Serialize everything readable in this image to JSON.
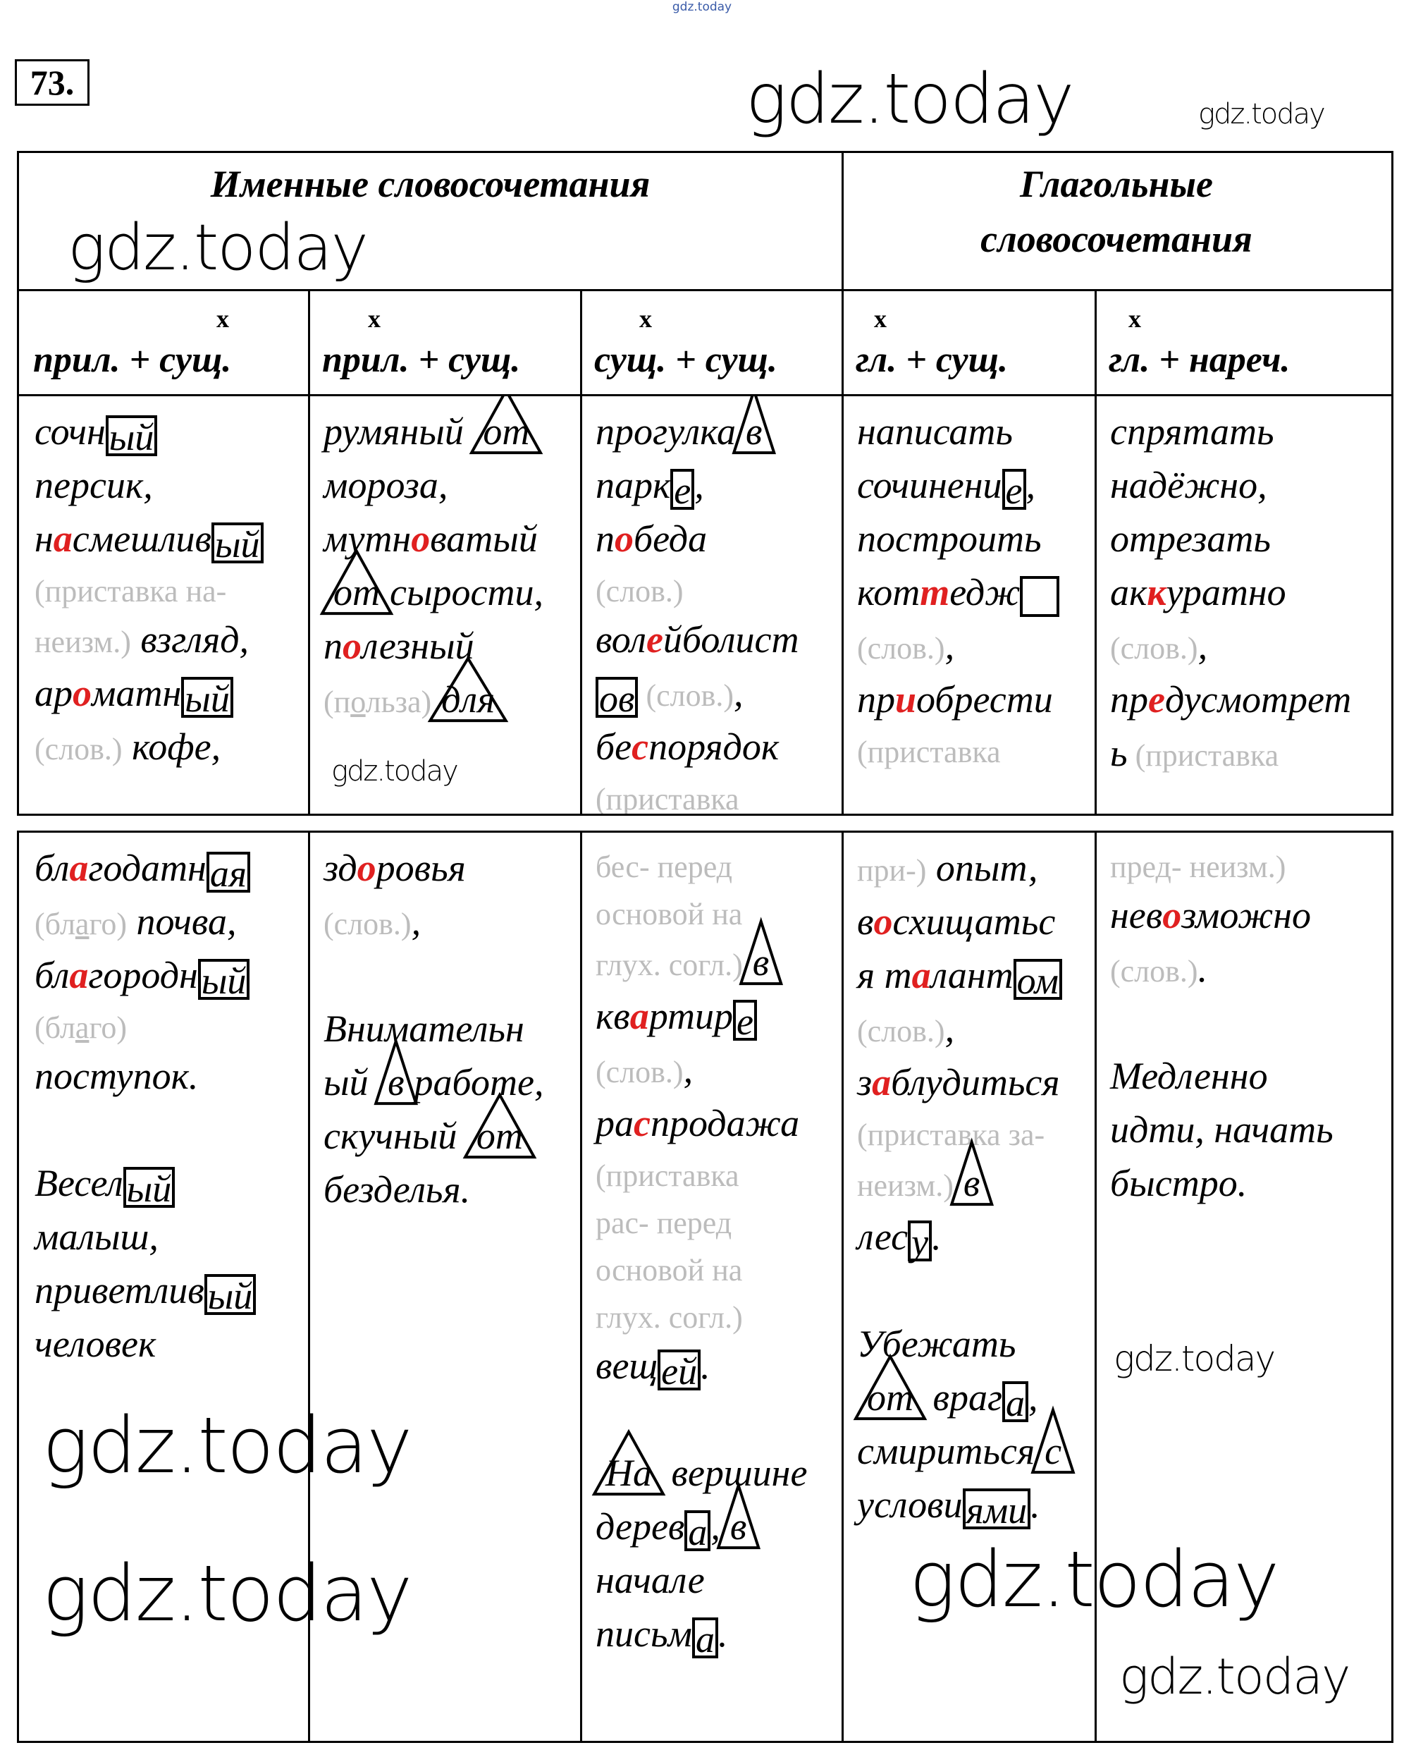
{
  "watermark_top": "gdz.today",
  "watermark": "gdz.today",
  "exercise_number": "73.",
  "header": {
    "nominal": "Именные словосочетания",
    "verbal_line1": "Глагольные",
    "verbal_line2": "словосочетания"
  },
  "subheaders": [
    {
      "mark": "x",
      "label": "прил. + сущ."
    },
    {
      "mark": "x",
      "label": "прил. + сущ."
    },
    {
      "mark": "x",
      "label": "сущ. + сущ."
    },
    {
      "mark": "x",
      "label": "гл. + сущ."
    },
    {
      "mark": "x",
      "label": "гл. + нареч."
    }
  ],
  "colors": {
    "accent": "#e02020",
    "note": "#bcbcbc"
  },
  "table1": [
    [
      [
        {
          "s": "n",
          "t": "сочн"
        },
        {
          "s": "box",
          "t": "ый"
        }
      ],
      [
        {
          "s": "n",
          "t": "персик,"
        }
      ],
      [
        {
          "s": "n",
          "t": "н"
        },
        {
          "s": "r",
          "t": "а"
        },
        {
          "s": "n",
          "t": "смешлив"
        },
        {
          "s": "box",
          "t": "ый"
        }
      ],
      [
        {
          "s": "g",
          "t": "(приставка на-"
        }
      ],
      [
        {
          "s": "g",
          "t": "неизм.)"
        },
        {
          "s": "n",
          "t": " взгляд,"
        }
      ],
      [
        {
          "s": "n",
          "t": "ар"
        },
        {
          "s": "r",
          "t": "о"
        },
        {
          "s": "n",
          "t": "матн"
        },
        {
          "s": "box",
          "t": "ый"
        }
      ],
      [
        {
          "s": "g",
          "t": "(слов.)"
        },
        {
          "s": "n",
          "t": " кофе,"
        }
      ]
    ],
    [
      [
        {
          "s": "n",
          "t": "румяный "
        },
        {
          "s": "tri",
          "t": "от"
        }
      ],
      [
        {
          "s": "n",
          "t": "мороза,"
        }
      ],
      [
        {
          "s": "n",
          "t": "мутн"
        },
        {
          "s": "r",
          "t": "о"
        },
        {
          "s": "n",
          "t": "ватый"
        }
      ],
      [
        {
          "s": "tri",
          "t": "от"
        },
        {
          "s": "n",
          "t": "сырости,"
        }
      ],
      [
        {
          "s": "n",
          "t": "п"
        },
        {
          "s": "r",
          "t": "о"
        },
        {
          "s": "n",
          "t": "лезный"
        }
      ],
      [
        {
          "s": "g",
          "t": "(п"
        },
        {
          "s": "gu",
          "t": "о"
        },
        {
          "s": "g",
          "t": "льза)"
        },
        {
          "s": "tri",
          "t": "для"
        }
      ]
    ],
    [
      [
        {
          "s": "n",
          "t": "прогулка"
        },
        {
          "s": "tri",
          "t": "в"
        }
      ],
      [
        {
          "s": "n",
          "t": "парк"
        },
        {
          "s": "box",
          "t": "е"
        },
        {
          "s": "n",
          "t": ","
        }
      ],
      [
        {
          "s": "n",
          "t": "п"
        },
        {
          "s": "r",
          "t": "о"
        },
        {
          "s": "n",
          "t": "беда"
        }
      ],
      [
        {
          "s": "g",
          "t": "(слов.)"
        }
      ],
      [
        {
          "s": "n",
          "t": "вол"
        },
        {
          "s": "r",
          "t": "е"
        },
        {
          "s": "n",
          "t": "йболист"
        }
      ],
      [
        {
          "s": "box",
          "t": "ов"
        },
        {
          "s": "g",
          "t": " (слов.)"
        },
        {
          "s": "n",
          "t": ","
        }
      ],
      [
        {
          "s": "n",
          "t": "бе"
        },
        {
          "s": "r",
          "t": "с"
        },
        {
          "s": "n",
          "t": "порядок"
        }
      ],
      [
        {
          "s": "g",
          "t": "(приставка"
        }
      ]
    ],
    [
      [
        {
          "s": "n",
          "t": "написать"
        }
      ],
      [
        {
          "s": "n",
          "t": "сочинени"
        },
        {
          "s": "box",
          "t": "е"
        },
        {
          "s": "n",
          "t": ","
        }
      ],
      [
        {
          "s": "n",
          "t": "построить"
        }
      ],
      [
        {
          "s": "n",
          "t": "кот"
        },
        {
          "s": "r",
          "t": "т"
        },
        {
          "s": "n",
          "t": "едж"
        },
        {
          "s": "box",
          "t": "  "
        }
      ],
      [
        {
          "s": "g",
          "t": "(слов.)"
        },
        {
          "s": "n",
          "t": ","
        }
      ],
      [
        {
          "s": "n",
          "t": "пр"
        },
        {
          "s": "r",
          "t": "и"
        },
        {
          "s": "n",
          "t": "обрести"
        }
      ],
      [
        {
          "s": "g",
          "t": "(приставка"
        }
      ]
    ],
    [
      [
        {
          "s": "n",
          "t": "спрятать"
        }
      ],
      [
        {
          "s": "n",
          "t": "надёжно,"
        }
      ],
      [
        {
          "s": "n",
          "t": "отрезать"
        }
      ],
      [
        {
          "s": "n",
          "t": "ак"
        },
        {
          "s": "r",
          "t": "к"
        },
        {
          "s": "n",
          "t": "уратно"
        }
      ],
      [
        {
          "s": "g",
          "t": "(слов.)"
        },
        {
          "s": "n",
          "t": ","
        }
      ],
      [
        {
          "s": "n",
          "t": "пр"
        },
        {
          "s": "r",
          "t": "е"
        },
        {
          "s": "n",
          "t": "дусмотрет"
        }
      ],
      [
        {
          "s": "n",
          "t": "ь"
        },
        {
          "s": "g",
          "t": " (приставка"
        }
      ]
    ]
  ],
  "table2": [
    [
      [
        {
          "s": "n",
          "t": "бл"
        },
        {
          "s": "r",
          "t": "а"
        },
        {
          "s": "n",
          "t": "годатн"
        },
        {
          "s": "box",
          "t": "ая"
        }
      ],
      [
        {
          "s": "g",
          "t": "(бл"
        },
        {
          "s": "gu",
          "t": "а"
        },
        {
          "s": "g",
          "t": "го)"
        },
        {
          "s": "n",
          "t": " почва,"
        }
      ],
      [
        {
          "s": "n",
          "t": "бл"
        },
        {
          "s": "r",
          "t": "а"
        },
        {
          "s": "n",
          "t": "городн"
        },
        {
          "s": "box",
          "t": "ый"
        }
      ],
      [
        {
          "s": "g",
          "t": "(бл"
        },
        {
          "s": "gu",
          "t": "а"
        },
        {
          "s": "g",
          "t": "го)"
        }
      ],
      [
        {
          "s": "n",
          "t": "поступок."
        }
      ],
      [],
      [
        {
          "s": "n",
          "t": "Весел"
        },
        {
          "s": "box",
          "t": "ый"
        }
      ],
      [
        {
          "s": "n",
          "t": "малыш,"
        }
      ],
      [
        {
          "s": "n",
          "t": "приветлив"
        },
        {
          "s": "box",
          "t": "ый"
        }
      ],
      [
        {
          "s": "n",
          "t": "человек"
        }
      ]
    ],
    [
      [
        {
          "s": "n",
          "t": "зд"
        },
        {
          "s": "r",
          "t": "о"
        },
        {
          "s": "n",
          "t": "ровья"
        }
      ],
      [
        {
          "s": "g",
          "t": "(слов.)"
        },
        {
          "s": "n",
          "t": ","
        }
      ],
      [],
      [
        {
          "s": "n",
          "t": "Внимательн"
        }
      ],
      [
        {
          "s": "n",
          "t": "ый "
        },
        {
          "s": "tri",
          "t": "в"
        },
        {
          "s": "n",
          "t": "работе,"
        }
      ],
      [
        {
          "s": "n",
          "t": "скучный "
        },
        {
          "s": "tri",
          "t": "от"
        }
      ],
      [
        {
          "s": "n",
          "t": "безделья."
        }
      ]
    ],
    [
      [
        {
          "s": "g",
          "t": "бес- перед"
        }
      ],
      [
        {
          "s": "g",
          "t": "основой на"
        }
      ],
      [
        {
          "s": "g",
          "t": "глух. согл.)"
        },
        {
          "s": "tri",
          "t": "в"
        }
      ],
      [
        {
          "s": "n",
          "t": "кв"
        },
        {
          "s": "r",
          "t": "а"
        },
        {
          "s": "n",
          "t": "ртир"
        },
        {
          "s": "box",
          "t": "е"
        }
      ],
      [
        {
          "s": "g",
          "t": "(слов.)"
        },
        {
          "s": "n",
          "t": ","
        }
      ],
      [
        {
          "s": "n",
          "t": "ра"
        },
        {
          "s": "r",
          "t": "с"
        },
        {
          "s": "n",
          "t": "продажа"
        }
      ],
      [
        {
          "s": "g",
          "t": "(приставка"
        }
      ],
      [
        {
          "s": "g",
          "t": "рас- перед"
        }
      ],
      [
        {
          "s": "g",
          "t": "основой на"
        }
      ],
      [
        {
          "s": "g",
          "t": "глух. согл.)"
        }
      ],
      [
        {
          "s": "n",
          "t": "вещ"
        },
        {
          "s": "box",
          "t": "ей"
        },
        {
          "s": "n",
          "t": "."
        }
      ],
      [],
      [
        {
          "s": "tri",
          "t": "На"
        },
        {
          "s": "n",
          "t": " вершине"
        }
      ],
      [
        {
          "s": "n",
          "t": "дерев"
        },
        {
          "s": "box",
          "t": "а"
        },
        {
          "s": "n",
          "t": ","
        },
        {
          "s": "tri",
          "t": "в"
        }
      ],
      [
        {
          "s": "n",
          "t": "начале"
        }
      ],
      [
        {
          "s": "n",
          "t": "письм"
        },
        {
          "s": "box",
          "t": "а"
        },
        {
          "s": "n",
          "t": "."
        }
      ]
    ],
    [
      [
        {
          "s": "g",
          "t": "при-)"
        },
        {
          "s": "n",
          "t": " опыт,"
        }
      ],
      [
        {
          "s": "n",
          "t": "в"
        },
        {
          "s": "r",
          "t": "о"
        },
        {
          "s": "n",
          "t": "схищатьс"
        }
      ],
      [
        {
          "s": "n",
          "t": "я т"
        },
        {
          "s": "r",
          "t": "а"
        },
        {
          "s": "n",
          "t": "лант"
        },
        {
          "s": "box",
          "t": "ом"
        }
      ],
      [
        {
          "s": "g",
          "t": "(слов.)"
        },
        {
          "s": "n",
          "t": ","
        }
      ],
      [
        {
          "s": "n",
          "t": "з"
        },
        {
          "s": "r",
          "t": "а"
        },
        {
          "s": "n",
          "t": "блудиться"
        }
      ],
      [
        {
          "s": "g",
          "t": "(приставка за-"
        }
      ],
      [
        {
          "s": "g",
          "t": "неизм.)"
        },
        {
          "s": "tri",
          "t": "в"
        }
      ],
      [
        {
          "s": "n",
          "t": "лес"
        },
        {
          "s": "box",
          "t": "у"
        },
        {
          "s": "n",
          "t": "."
        }
      ],
      [],
      [
        {
          "s": "n",
          "t": "Убежать"
        }
      ],
      [
        {
          "s": "tri",
          "t": "от"
        },
        {
          "s": "n",
          "t": " враг"
        },
        {
          "s": "box",
          "t": "а"
        },
        {
          "s": "n",
          "t": ","
        }
      ],
      [
        {
          "s": "n",
          "t": "смириться"
        },
        {
          "s": "tri",
          "t": "с"
        }
      ],
      [
        {
          "s": "n",
          "t": "услови"
        },
        {
          "s": "box",
          "t": "ями"
        },
        {
          "s": "n",
          "t": "."
        }
      ]
    ],
    [
      [
        {
          "s": "g",
          "t": "пред- неизм.)"
        }
      ],
      [
        {
          "s": "n",
          "t": "нев"
        },
        {
          "s": "r",
          "t": "о"
        },
        {
          "s": "n",
          "t": "зможно"
        }
      ],
      [
        {
          "s": "g",
          "t": "(слов.)"
        },
        {
          "s": "n",
          "t": "."
        }
      ],
      [],
      [
        {
          "s": "n",
          "t": "Медленно"
        }
      ],
      [
        {
          "s": "n",
          "t": "идти, начать"
        }
      ],
      [
        {
          "s": "n",
          "t": "быстро."
        }
      ]
    ]
  ]
}
